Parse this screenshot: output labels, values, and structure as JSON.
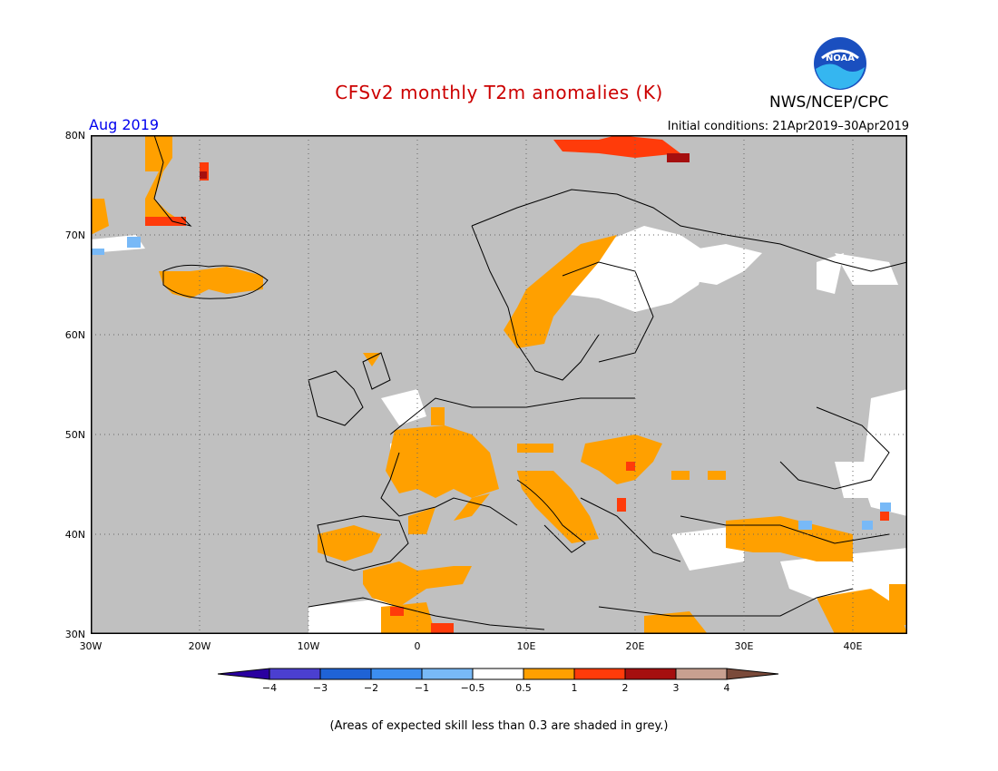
{
  "title": "CFSv2 monthly T2m anomalies (K)",
  "month": "Aug 2019",
  "initial_conditions": "Initial conditions: 21Apr2019–30Apr2019",
  "agency": "NWS/NCEP/CPC",
  "logo_text": "NOAA",
  "footnote": "(Areas of expected skill less than 0.3 are shaded in grey.)",
  "lat_labels": [
    "80N",
    "70N",
    "60N",
    "50N",
    "40N",
    "30N"
  ],
  "lon_labels": [
    "30W",
    "20W",
    "10W",
    "0",
    "10E",
    "20E",
    "30E",
    "40E"
  ],
  "colorbar": {
    "labels": [
      "−4",
      "−3",
      "−2",
      "−1",
      "−0.5",
      "0.5",
      "1",
      "2",
      "3",
      "4"
    ],
    "colors": [
      "#2a00a0",
      "#4b3fd0",
      "#1f63d6",
      "#3c8ef0",
      "#78b9f7",
      "#ffffff",
      "#ffa000",
      "#ff3b0a",
      "#a50f0f",
      "#c8a090",
      "#7a4a3a"
    ]
  },
  "map_colors": {
    "grey": "#c0c0c0",
    "white": "#ffffff",
    "light_orange": "#ffa000",
    "red": "#ff3b0a",
    "dark_red": "#a50f0f",
    "light_blue": "#78b9f7"
  }
}
